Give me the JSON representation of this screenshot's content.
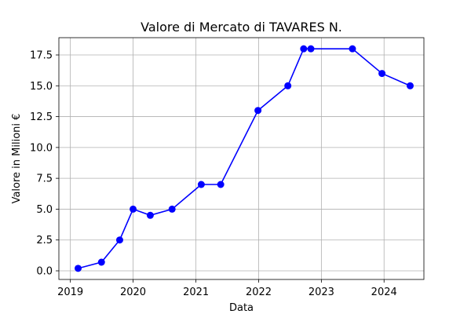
{
  "chart_data": {
    "type": "line",
    "title": "Valore di Mercato di TAVARES N.",
    "xlabel": "Data",
    "ylabel": "Valore in Milioni €",
    "grid": true,
    "color": "#0000ff",
    "xlim": [
      "2018-10-26",
      "2024-08-20"
    ],
    "ylim": [
      -0.7,
      18.9
    ],
    "x_ticks": [
      "2019",
      "2020",
      "2021",
      "2022",
      "2023",
      "2024"
    ],
    "y_ticks": [
      "0.0",
      "2.5",
      "5.0",
      "7.5",
      "10.0",
      "12.5",
      "15.0",
      "17.5"
    ],
    "series": [
      {
        "x": [
          "2019-02-15",
          "2019-07-01",
          "2019-10-15",
          "2020-01-01",
          "2020-04-10",
          "2020-08-15",
          "2021-02-01",
          "2021-05-25",
          "2021-12-28",
          "2022-06-20",
          "2022-09-20",
          "2022-11-01",
          "2023-07-01",
          "2023-12-20",
          "2024-06-01"
        ],
        "y": [
          0.2,
          0.7,
          2.5,
          5.0,
          4.5,
          5.0,
          7.0,
          7.0,
          13.0,
          15.0,
          18.0,
          18.0,
          18.0,
          16.0,
          15.0
        ]
      }
    ]
  }
}
